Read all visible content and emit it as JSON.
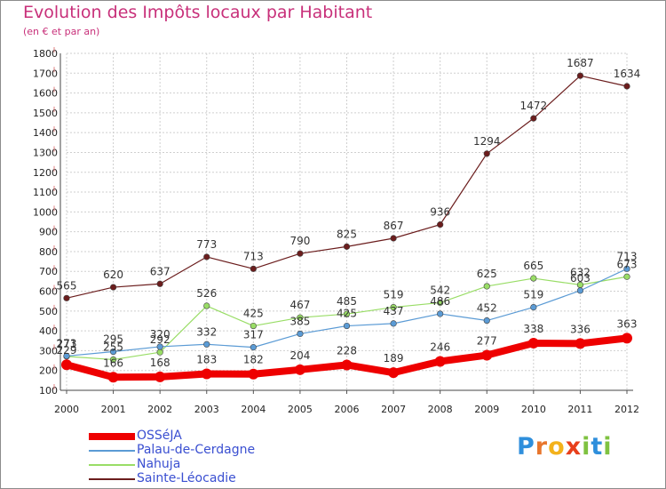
{
  "title": "Evolution des Impôts locaux par Habitant",
  "subtitle": "(en € et par an)",
  "logo": {
    "text": "Proxiti",
    "letters": [
      {
        "ch": "P",
        "color": "#2f8fdc"
      },
      {
        "ch": "r",
        "color": "#e8762d"
      },
      {
        "ch": "o",
        "color": "#f3b21c"
      },
      {
        "ch": "x",
        "color": "#e8401c"
      },
      {
        "ch": "i",
        "color": "#7fc241"
      },
      {
        "ch": "t",
        "color": "#2f8fdc"
      },
      {
        "ch": "i",
        "color": "#7fc241"
      }
    ]
  },
  "chart_data": {
    "type": "line",
    "title": "Evolution des Impôts locaux par Habitant",
    "subtitle": "(en € et par an)",
    "xlabel": "",
    "ylabel": "",
    "x": [
      "2000",
      "2001",
      "2002",
      "2003",
      "2004",
      "2005",
      "2006",
      "2007",
      "2008",
      "2009",
      "2010",
      "2011",
      "2012"
    ],
    "yticks": [
      100,
      200,
      300,
      400,
      500,
      600,
      700,
      800,
      900,
      1000,
      1100,
      1200,
      1300,
      1400,
      1500,
      1600,
      1700,
      1800
    ],
    "ylim": [
      100,
      1800
    ],
    "grid": true,
    "legend_position": "bottom-left",
    "series": [
      {
        "name": "Sainte-Léocadie",
        "color": "#6b1d1d",
        "line_width": 1.2,
        "marker": true,
        "values": [
          565,
          620,
          637,
          773,
          713,
          790,
          825,
          867,
          936,
          1294,
          1472,
          1687,
          1634
        ],
        "labels": [
          "565",
          "620",
          "637",
          "773",
          "713",
          "790",
          "825",
          "867",
          "936",
          "1294",
          "1472",
          "1687",
          "1634"
        ]
      },
      {
        "name": "Nahuja",
        "color": "#99dd66",
        "line_width": 1.2,
        "marker": true,
        "values": [
          271,
          255,
          292,
          526,
          425,
          467,
          485,
          519,
          542,
          625,
          665,
          632,
          673
        ],
        "labels": [
          "271",
          "255",
          "292",
          "526",
          "425",
          "467",
          "485",
          "519",
          "542",
          "625",
          "665",
          "632",
          "673"
        ]
      },
      {
        "name": "Palau-de-Cerdagne",
        "color": "#5b9bd5",
        "line_width": 1.2,
        "marker": true,
        "values": [
          273,
          295,
          320,
          332,
          317,
          385,
          425,
          437,
          486,
          452,
          519,
          603,
          713
        ],
        "labels": [
          "273",
          "295",
          "320",
          "332",
          "317",
          "385",
          "425",
          "437",
          "486",
          "452",
          "519",
          "603",
          "713"
        ]
      },
      {
        "name": "OSSéJA",
        "color": "#ee0000",
        "line_width": 8,
        "marker": true,
        "values": [
          229,
          166,
          168,
          183,
          182,
          204,
          228,
          189,
          246,
          277,
          338,
          336,
          363
        ],
        "labels": [
          "229",
          "166",
          "168",
          "183",
          "182",
          "204",
          "228",
          "189",
          "246",
          "277",
          "338",
          "336",
          "363"
        ]
      }
    ]
  },
  "legend": [
    {
      "label": "OSSéJA",
      "color": "#ee0000",
      "thickness": 8
    },
    {
      "label": "Palau-de-Cerdagne",
      "color": "#5b9bd5",
      "thickness": 2
    },
    {
      "label": "Nahuja",
      "color": "#99dd66",
      "thickness": 2
    },
    {
      "label": "Sainte-Léocadie",
      "color": "#6b1d1d",
      "thickness": 2
    }
  ]
}
